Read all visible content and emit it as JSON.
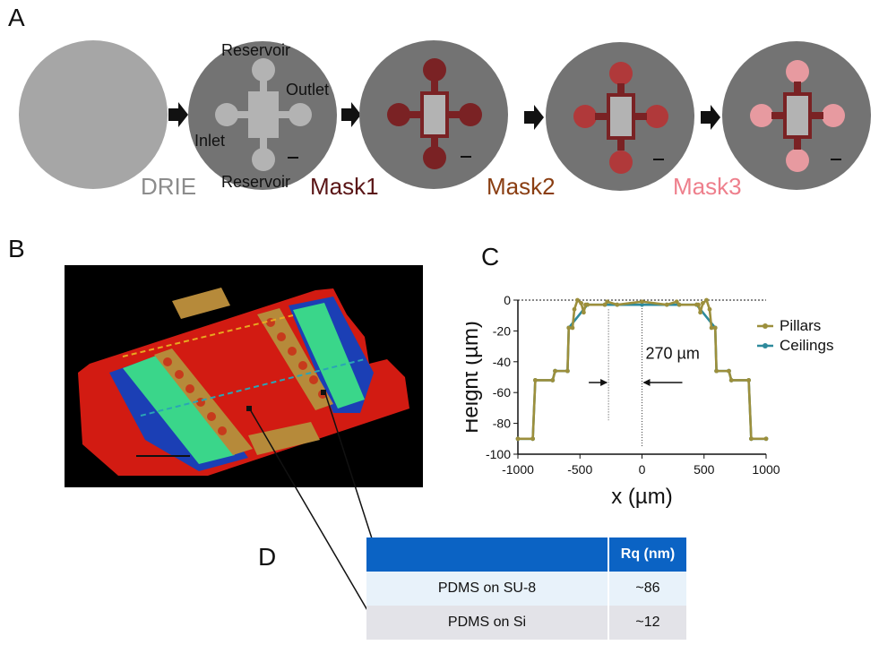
{
  "panels": {
    "a": "A",
    "b": "B",
    "c": "C",
    "d": "D"
  },
  "panel_a": {
    "labels": {
      "reservoir_top": "Reservoir",
      "outlet": "Outlet",
      "inlet": "Inlet",
      "reservoir_bottom": "Reservoir"
    },
    "steps": [
      {
        "label": "DRIE",
        "color": "#8c8c8c"
      },
      {
        "label": "Mask1",
        "color": "#5a1516"
      },
      {
        "label": "Mask2",
        "color": "#8a3e12"
      },
      {
        "label": "Mask3",
        "color": "#ee7f8c"
      }
    ],
    "colors": {
      "wafer_blank": "#a6a6a6",
      "wafer": "#737373",
      "feature_grey": "#b3b3b3",
      "mask1": "#7a2224",
      "mask2": "#b0393a",
      "mask3": "#e79aa0"
    }
  },
  "chart_data": {
    "type": "line",
    "xlabel": "x (µm)",
    "ylabel": "Height (µm)",
    "xlim": [
      -1000,
      1000
    ],
    "ylim": [
      -100,
      0
    ],
    "xticks": [
      "-1000",
      "-500",
      "0",
      "500",
      "1000"
    ],
    "yticks": [
      "0",
      "-20",
      "-40",
      "-60",
      "-80",
      "-100"
    ],
    "annotation": "270 µm",
    "series": [
      {
        "name": "Pillars",
        "color": "#9c8f3c",
        "x": [
          -1000,
          -880,
          -860,
          -720,
          -700,
          -600,
          -590,
          -560,
          -545,
          -520,
          -490,
          -470,
          -455,
          -440,
          -300,
          -280,
          -200,
          0,
          200,
          280,
          300,
          440,
          455,
          470,
          490,
          520,
          545,
          560,
          590,
          600,
          700,
          720,
          860,
          880,
          1000
        ],
        "y": [
          -90,
          -90,
          -52,
          -52,
          -46,
          -46,
          -18,
          -18,
          -6,
          0,
          -2,
          -8,
          -3,
          -3,
          -3,
          -1,
          -3,
          -1,
          -3,
          -1,
          -3,
          -3,
          -3,
          -8,
          -2,
          0,
          -6,
          -18,
          -18,
          -46,
          -46,
          -52,
          -52,
          -90,
          -90
        ]
      },
      {
        "name": "Ceilings",
        "color": "#2d8a9c",
        "x": [
          -1000,
          -880,
          -860,
          -720,
          -700,
          -600,
          -590,
          -440,
          -300,
          -200,
          0,
          200,
          300,
          440,
          590,
          600,
          700,
          720,
          860,
          880,
          1000
        ],
        "y": [
          -90,
          -90,
          -52,
          -52,
          -46,
          -46,
          -18,
          -3,
          -3,
          -3,
          -3,
          -3,
          -3,
          -3,
          -18,
          -46,
          -46,
          -52,
          -52,
          -90,
          -90
        ]
      }
    ]
  },
  "table": {
    "header": [
      "",
      "Rq (nm)"
    ],
    "rows": [
      {
        "name": "PDMS on SU-8",
        "value": "~86"
      },
      {
        "name": "PDMS on Si",
        "value": "~12"
      }
    ]
  }
}
